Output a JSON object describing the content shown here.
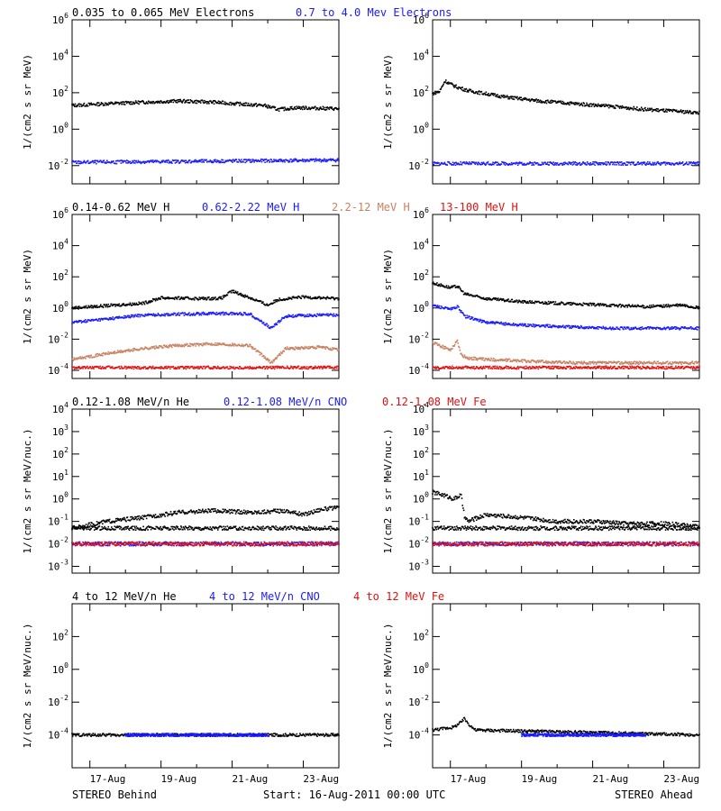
{
  "row_titles": [
    [
      {
        "text": "0.035 to 0.065 MeV Electrons",
        "color": "#000000"
      },
      {
        "text": "0.7 to 4.0 Mev Electrons",
        "color": "#1a1aff"
      }
    ],
    [
      {
        "text": "0.14-0.62 MeV H",
        "color": "#000000"
      },
      {
        "text": "0.62-2.22 MeV H",
        "color": "#1a1aff"
      },
      {
        "text": "2.2-12 MeV H",
        "color": "#c88060"
      },
      {
        "text": "13-100 MeV H",
        "color": "#e01010"
      }
    ],
    [
      {
        "text": "0.12-1.08 MeV/n He",
        "color": "#000000"
      },
      {
        "text": "0.12-1.08 MeV/n CNO",
        "color": "#1a1aff"
      },
      {
        "text": "0.12-1.08 MeV Fe",
        "color": "#e01010"
      }
    ],
    [
      {
        "text": "4 to 12 MeV/n He",
        "color": "#000000"
      },
      {
        "text": "4 to 12 MeV/n CNO",
        "color": "#1a1aff"
      },
      {
        "text": "4 to 12 MeV Fe",
        "color": "#e01010"
      }
    ]
  ],
  "footer": {
    "left": "STEREO Behind",
    "center": "Start: 16-Aug-2011 00:00 UTC",
    "right": "STEREO Ahead"
  },
  "chart_data": [
    {
      "type": "scatter",
      "panel": "electrons-behind",
      "ylabel": "1/(cm2 s sr MeV)",
      "yscale": "log",
      "ylim": [
        0.001,
        1000000
      ],
      "yticks": [
        "10-2",
        "100",
        "102",
        "104",
        "106"
      ],
      "xlim": [
        0,
        7.5
      ],
      "xticks": [
        "17-Aug",
        "19-Aug",
        "21-Aug",
        "23-Aug"
      ],
      "series": [
        {
          "color": "#000000",
          "x": [
            0,
            1,
            2,
            3,
            4,
            5,
            5.4,
            5.8,
            6.3,
            7.0,
            7.5
          ],
          "y": [
            20,
            25,
            30,
            35,
            30,
            22,
            20,
            12,
            15,
            14,
            13
          ]
        },
        {
          "color": "#1a1aff",
          "x": [
            0,
            7.5
          ],
          "y": [
            0.015,
            0.02
          ]
        }
      ]
    },
    {
      "type": "scatter",
      "panel": "electrons-ahead",
      "ylabel": "1/(cm2 s sr MeV)",
      "yscale": "log",
      "ylim": [
        0.001,
        1000000
      ],
      "yticks": [
        "10-2",
        "100",
        "102",
        "104",
        "106"
      ],
      "xlim": [
        0,
        7.5
      ],
      "xticks": [
        "17-Aug",
        "19-Aug",
        "21-Aug",
        "23-Aug"
      ],
      "series": [
        {
          "color": "#000000",
          "x": [
            0,
            0.2,
            0.35,
            0.5,
            0.7,
            1.0,
            2,
            3,
            4,
            5,
            6,
            7.5
          ],
          "y": [
            90,
            120,
            450,
            300,
            200,
            130,
            60,
            35,
            25,
            18,
            12,
            8
          ]
        },
        {
          "color": "#1a1aff",
          "x": [
            0,
            7.5
          ],
          "y": [
            0.013,
            0.013
          ]
        }
      ]
    },
    {
      "type": "scatter",
      "panel": "protons-behind",
      "ylabel": "1/(cm2 s sr MeV)",
      "yscale": "log",
      "ylim": [
        3e-05,
        1000000
      ],
      "yticks": [
        "10-4",
        "10-2",
        "100",
        "102",
        "104",
        "106"
      ],
      "xlim": [
        0,
        7.5
      ],
      "xticks": [
        "17-Aug",
        "19-Aug",
        "21-Aug",
        "23-Aug"
      ],
      "series": [
        {
          "color": "#000000",
          "x": [
            0,
            1,
            2,
            2.5,
            3.5,
            4.2,
            4.5,
            5.0,
            5.2,
            5.5,
            5.8,
            6.5,
            7.5
          ],
          "y": [
            1.0,
            1.4,
            2.0,
            4.5,
            4.0,
            4.2,
            12,
            4.5,
            3.0,
            1.5,
            3.5,
            5,
            4
          ]
        },
        {
          "color": "#1a1aff",
          "x": [
            0,
            1,
            2,
            3,
            4,
            5,
            5.6,
            6.0,
            7.0,
            7.5
          ],
          "y": [
            0.12,
            0.2,
            0.35,
            0.4,
            0.45,
            0.42,
            0.05,
            0.3,
            0.35,
            0.35
          ]
        },
        {
          "color": "#c88060",
          "x": [
            0,
            1,
            2,
            3,
            4,
            5,
            5.6,
            6.0,
            7.0,
            7.5
          ],
          "y": [
            0.0005,
            0.0012,
            0.0025,
            0.004,
            0.005,
            0.004,
            0.0003,
            0.0025,
            0.003,
            0.002
          ]
        },
        {
          "color": "#e01010",
          "x": [
            0,
            7.5
          ],
          "y": [
            0.00015,
            0.00015
          ]
        }
      ]
    },
    {
      "type": "scatter",
      "panel": "protons-ahead",
      "ylabel": "1/(cm2 s sr MeV)",
      "yscale": "log",
      "ylim": [
        3e-05,
        1000000
      ],
      "yticks": [
        "10-4",
        "10-2",
        "100",
        "102",
        "104",
        "106"
      ],
      "xlim": [
        0,
        7.5
      ],
      "xticks": [
        "17-Aug",
        "19-Aug",
        "21-Aug",
        "23-Aug"
      ],
      "series": [
        {
          "color": "#000000",
          "x": [
            0,
            0.5,
            0.7,
            0.9,
            1.5,
            2.5,
            4,
            5,
            6,
            7,
            7.5
          ],
          "y": [
            40,
            20,
            25,
            8,
            4,
            2.5,
            1.8,
            1.5,
            1.2,
            1.5,
            1.0
          ]
        },
        {
          "color": "#1a1aff",
          "x": [
            0,
            0.5,
            0.7,
            0.9,
            1.5,
            2.5,
            4,
            5,
            6,
            7.5
          ],
          "y": [
            1.5,
            0.8,
            1.2,
            0.3,
            0.12,
            0.08,
            0.06,
            0.05,
            0.05,
            0.05
          ]
        },
        {
          "color": "#c88060",
          "x": [
            0,
            0.5,
            0.7,
            0.8,
            1.0,
            1.5,
            2.5,
            4,
            5,
            7.5
          ],
          "y": [
            0.006,
            0.002,
            0.008,
            0.001,
            0.0006,
            0.0005,
            0.0004,
            0.0003,
            0.0003,
            0.0003
          ]
        },
        {
          "color": "#e01010",
          "x": [
            0,
            7.5
          ],
          "y": [
            0.00015,
            0.00015
          ]
        }
      ]
    },
    {
      "type": "scatter",
      "panel": "heavy-low-behind",
      "ylabel": "1/(cm2 s sr MeV/nuc.)",
      "yscale": "log",
      "ylim": [
        0.0005,
        10000
      ],
      "yticks": [
        "10-3",
        "10-2",
        "10-1",
        "100",
        "101",
        "102",
        "103",
        "104"
      ],
      "xlim": [
        0,
        7.5
      ],
      "xticks": [
        "17-Aug",
        "19-Aug",
        "21-Aug",
        "23-Aug"
      ],
      "series": [
        {
          "color": "#000000",
          "x": [
            0,
            1,
            2,
            3,
            4,
            5,
            6,
            6.5,
            7,
            7.5
          ],
          "y": [
            0.05,
            0.1,
            0.15,
            0.25,
            0.3,
            0.25,
            0.3,
            0.2,
            0.35,
            0.4
          ]
        },
        {
          "color": "#000000",
          "x": [
            0,
            7.5
          ],
          "y": [
            0.05,
            0.05
          ]
        },
        {
          "color": "#1a1aff",
          "x": [
            0,
            7.5
          ],
          "y": [
            0.01,
            0.01
          ]
        },
        {
          "color": "#e01010",
          "x": [
            0,
            7.5
          ],
          "y": [
            0.01,
            0.01
          ]
        }
      ]
    },
    {
      "type": "scatter",
      "panel": "heavy-low-ahead",
      "ylabel": "1/(cm2 s sr MeV/nuc.)",
      "yscale": "log",
      "ylim": [
        0.0005,
        10000
      ],
      "yticks": [
        "10-3",
        "10-2",
        "10-1",
        "100",
        "101",
        "102",
        "103",
        "104"
      ],
      "xlim": [
        0,
        7.5
      ],
      "xticks": [
        "17-Aug",
        "19-Aug",
        "21-Aug",
        "23-Aug"
      ],
      "series": [
        {
          "color": "#000000",
          "x": [
            0,
            0.3,
            0.6,
            0.8,
            0.9,
            1.0,
            1.5,
            2.5,
            3.5,
            4.5,
            5.5,
            6.5,
            7.5
          ],
          "y": [
            2.0,
            1.5,
            1.0,
            1.5,
            0.15,
            0.1,
            0.2,
            0.15,
            0.1,
            0.1,
            0.08,
            0.08,
            0.06
          ]
        },
        {
          "color": "#000000",
          "x": [
            0,
            7.5
          ],
          "y": [
            0.05,
            0.05
          ]
        },
        {
          "color": "#1a1aff",
          "x": [
            0,
            7.5
          ],
          "y": [
            0.01,
            0.01
          ]
        },
        {
          "color": "#e01010",
          "x": [
            0,
            7.5
          ],
          "y": [
            0.01,
            0.01
          ]
        }
      ]
    },
    {
      "type": "scatter",
      "panel": "heavy-high-behind",
      "ylabel": "1/(cm2 s sr MeV/nuc.)",
      "yscale": "log",
      "ylim": [
        1e-06,
        10000
      ],
      "yticks": [
        "10-4",
        "10-2",
        "100",
        "102"
      ],
      "xlim": [
        0,
        7.5
      ],
      "xticks": [
        "17-Aug",
        "19-Aug",
        "21-Aug",
        "23-Aug"
      ],
      "series": [
        {
          "color": "#000000",
          "x": [
            0,
            7.5
          ],
          "y": [
            0.0001,
            0.0001
          ]
        },
        {
          "color": "#1a1aff",
          "x": [
            1.5,
            2.5,
            4.0,
            5.5
          ],
          "y": [
            0.0001,
            0.0001,
            0.0001,
            0.0001
          ]
        }
      ]
    },
    {
      "type": "scatter",
      "panel": "heavy-high-ahead",
      "ylabel": "1/(cm2 s sr MeV/nuc.)",
      "yscale": "log",
      "ylim": [
        1e-06,
        10000
      ],
      "yticks": [
        "10-4",
        "10-2",
        "100",
        "102"
      ],
      "xlim": [
        0,
        7.5
      ],
      "xticks": [
        "17-Aug",
        "19-Aug",
        "21-Aug",
        "23-Aug"
      ],
      "series": [
        {
          "color": "#000000",
          "x": [
            0,
            0.6,
            0.8,
            0.9,
            1.0,
            1.2,
            7.5
          ],
          "y": [
            0.0002,
            0.0003,
            0.0006,
            0.001,
            0.0005,
            0.0002,
            0.0001
          ]
        },
        {
          "color": "#1a1aff",
          "x": [
            2.5,
            4.0,
            6.0
          ],
          "y": [
            0.0001,
            0.0001,
            0.0001
          ]
        }
      ]
    }
  ]
}
